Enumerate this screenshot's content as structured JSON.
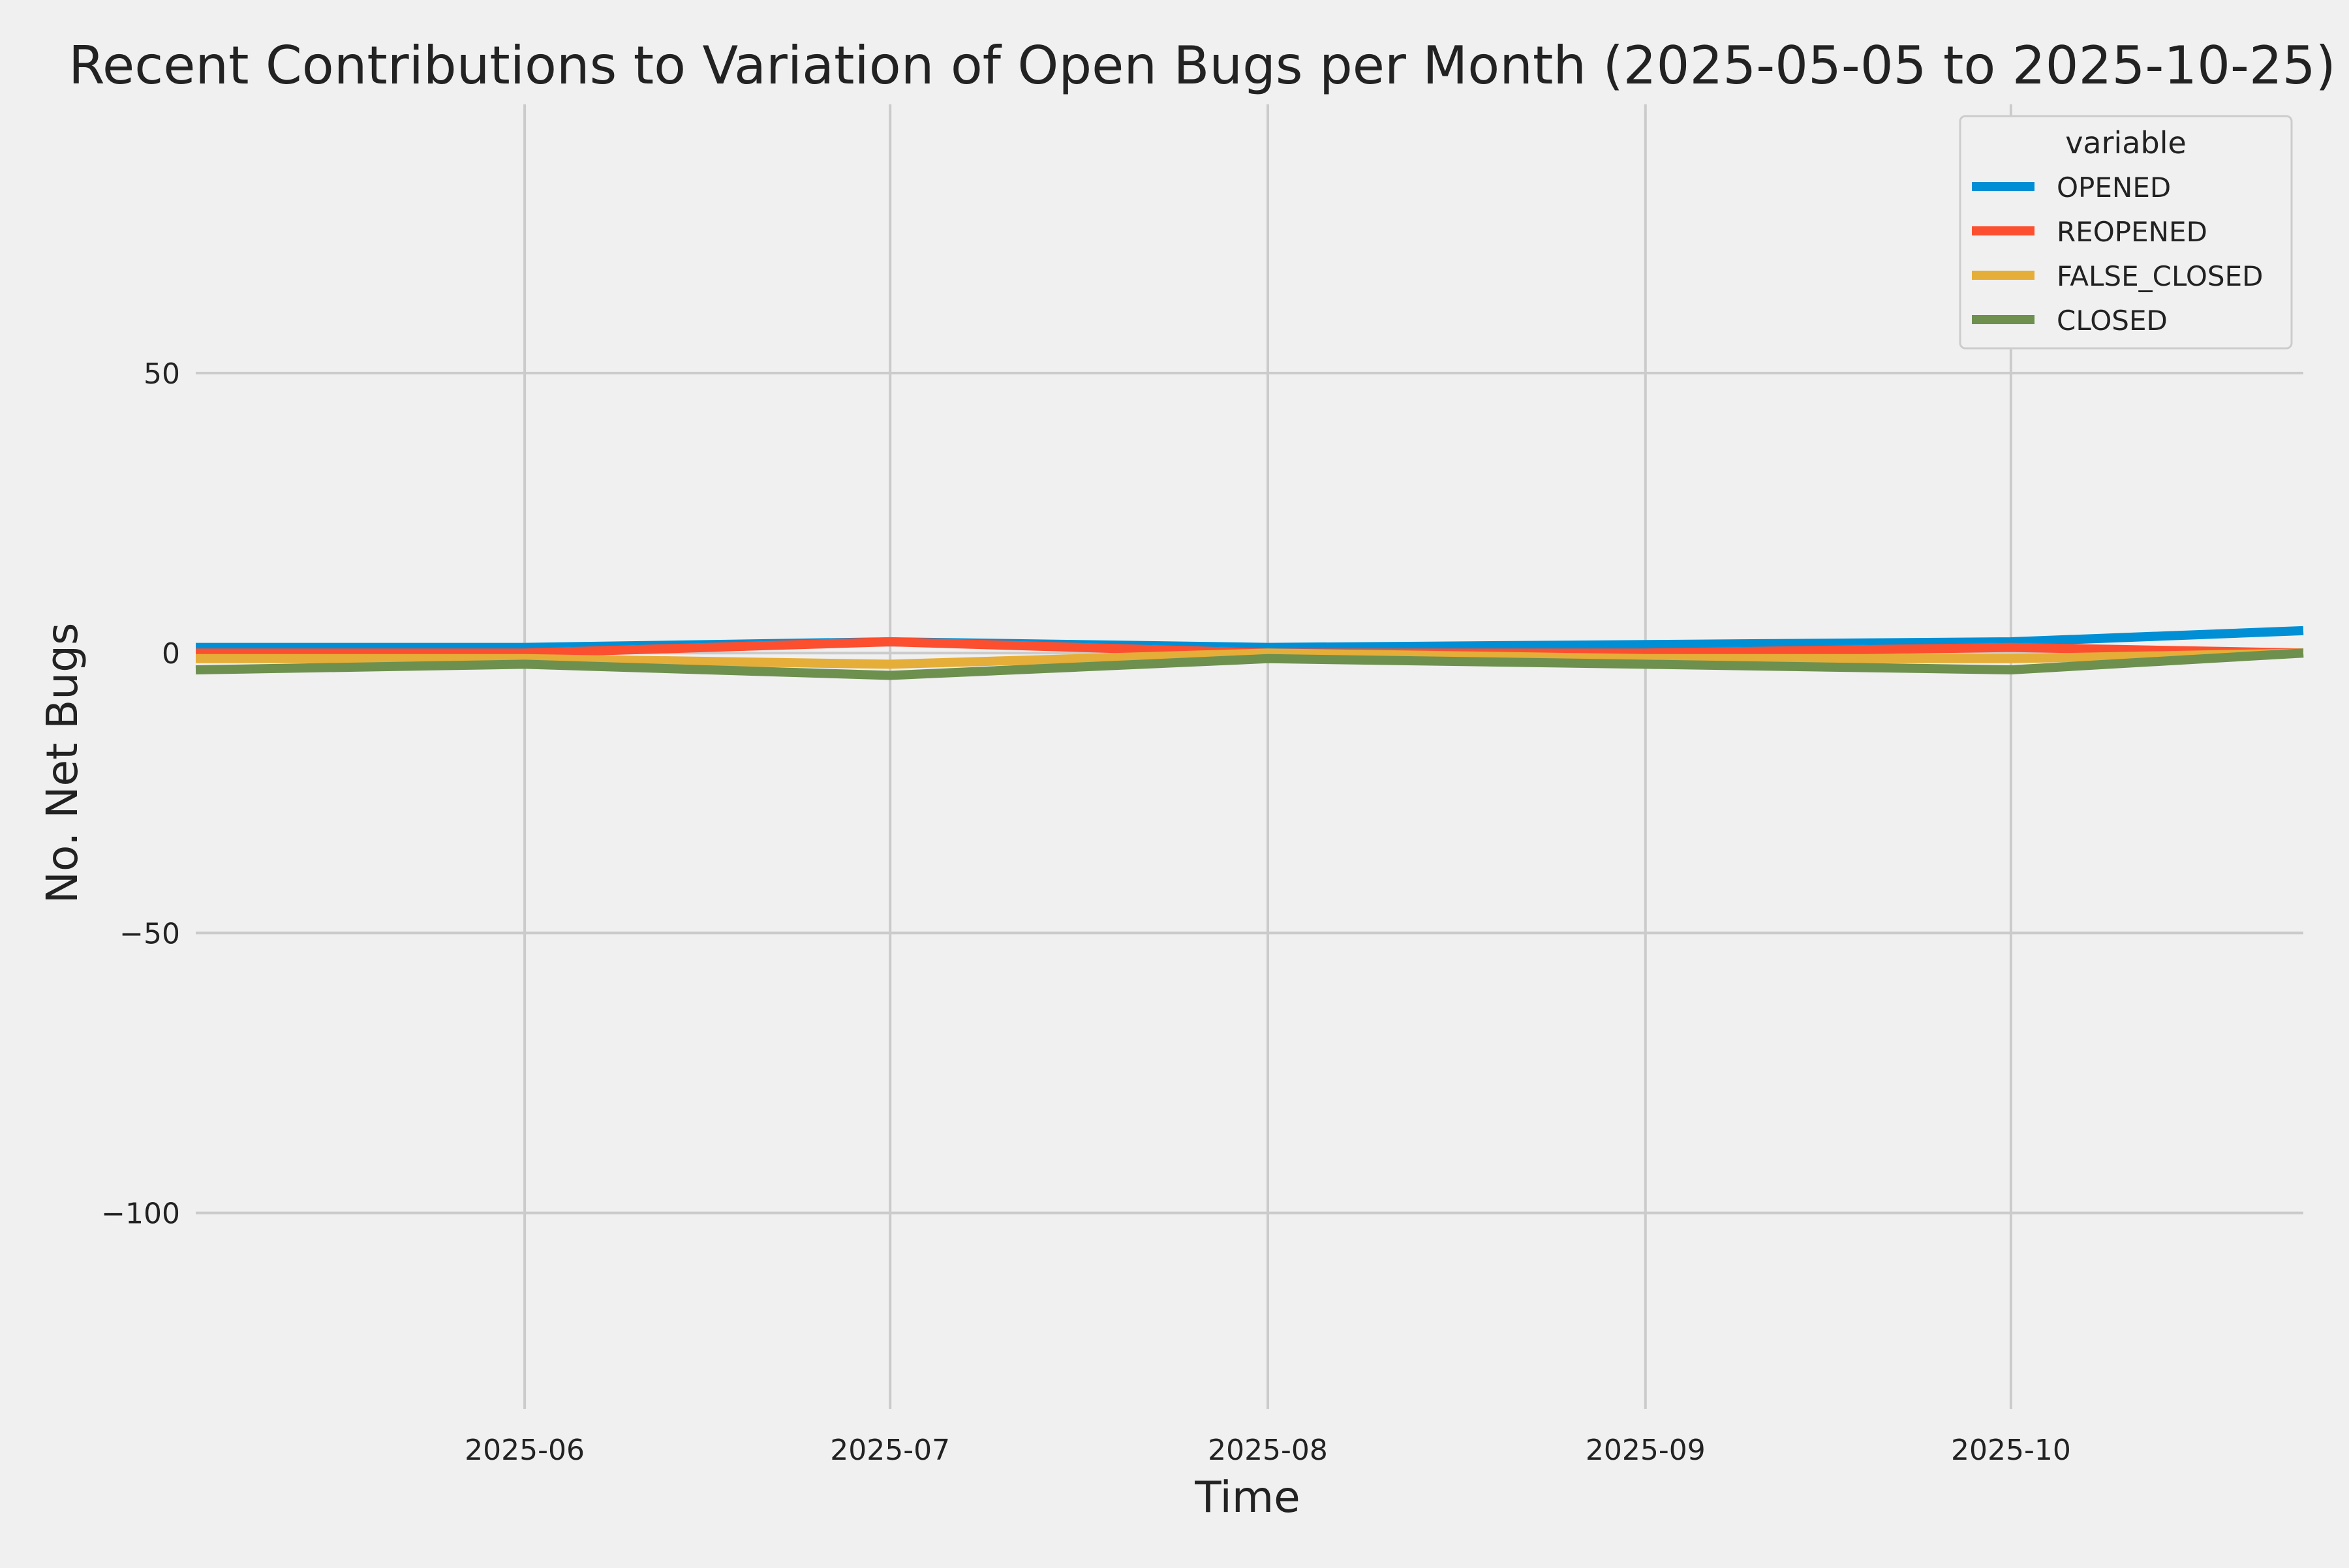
{
  "chart_data": {
    "type": "line",
    "title": "Recent Contributions to Variation of Open Bugs per Month (2025-05-05 to 2025-10-25)",
    "xlabel": "Time",
    "ylabel": "No. Net Bugs",
    "xlim": [
      "2025-05-05",
      "2025-10-25"
    ],
    "ylim": [
      -135,
      98
    ],
    "x_ticks": [
      "2025-06",
      "2025-07",
      "2025-08",
      "2025-09",
      "2025-10"
    ],
    "y_ticks": [
      {
        "value": 50,
        "label": "50"
      },
      {
        "value": 0,
        "label": "0"
      },
      {
        "value": -50,
        "label": "−50"
      },
      {
        "value": -100,
        "label": "−100"
      }
    ],
    "grid": true,
    "legend": {
      "title": "variable",
      "placement": "top-right"
    },
    "x": [
      "2025-05-05",
      "2025-06-01",
      "2025-07-01",
      "2025-08-01",
      "2025-09-01",
      "2025-10-01",
      "2025-10-25"
    ],
    "series": [
      {
        "name": "OPENED",
        "color": "#008fd5",
        "values": [
          1,
          1,
          2,
          1,
          1.5,
          2,
          4
        ]
      },
      {
        "name": "REOPENED",
        "color": "#fc4f30",
        "values": [
          0,
          0,
          2,
          0,
          0,
          1,
          0
        ]
      },
      {
        "name": "FALSE_CLOSED",
        "color": "#e5ae38",
        "values": [
          -1,
          -1,
          -2,
          0,
          -1,
          -1,
          0
        ]
      },
      {
        "name": "CLOSED",
        "color": "#6d904f",
        "values": [
          -3,
          -2,
          -4,
          -1,
          -2,
          -3,
          0
        ]
      }
    ]
  }
}
